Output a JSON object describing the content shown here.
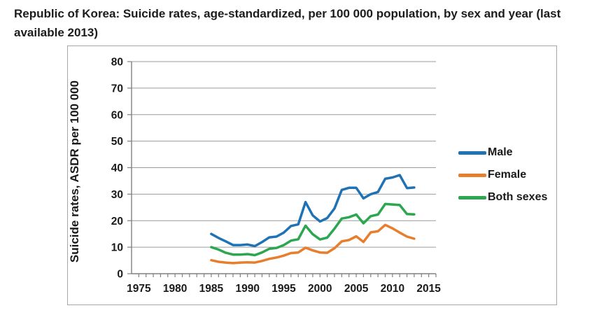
{
  "page": {
    "title": "Republic of Korea: Suicide rates, age-standardized, per 100 000 population, by sex and year (last available 2013)"
  },
  "chart_data": {
    "type": "line",
    "title": "Republic of Korea: Suicide rates, age-standardized, per 100 000 population, by sex and year (last available 2013)",
    "xlabel": "",
    "ylabel": "Suicide rates, ASDR per 100 000",
    "x": [
      1985,
      1986,
      1987,
      1988,
      1989,
      1990,
      1991,
      1992,
      1993,
      1994,
      1995,
      1996,
      1997,
      1998,
      1999,
      2000,
      2001,
      2002,
      2003,
      2004,
      2005,
      2006,
      2007,
      2008,
      2009,
      2010,
      2011,
      2012,
      2013
    ],
    "series": [
      {
        "name": "Male",
        "color": "#1F73B5",
        "values": [
          15.0,
          13.5,
          12.2,
          10.8,
          10.8,
          11.0,
          10.4,
          11.9,
          13.7,
          14.0,
          15.5,
          18.0,
          18.6,
          27.0,
          22.0,
          19.7,
          21.0,
          24.6,
          31.6,
          32.4,
          32.4,
          28.4,
          30.0,
          30.8,
          35.8,
          36.3,
          37.2,
          32.3,
          32.5
        ]
      },
      {
        "name": "Female",
        "color": "#E87E2C",
        "values": [
          5.1,
          4.5,
          4.2,
          4.0,
          4.2,
          4.3,
          4.2,
          4.8,
          5.6,
          6.1,
          6.8,
          7.8,
          8.0,
          9.8,
          8.8,
          8.0,
          7.9,
          9.6,
          12.2,
          12.7,
          14.1,
          12.0,
          15.6,
          16.0,
          18.4,
          17.1,
          15.5,
          14.0,
          13.2
        ]
      },
      {
        "name": "Both sexes",
        "color": "#2CA750",
        "values": [
          10.0,
          9.1,
          7.9,
          7.2,
          7.2,
          7.4,
          7.0,
          8.0,
          9.4,
          9.7,
          10.8,
          12.5,
          13.0,
          18.1,
          14.9,
          12.9,
          13.6,
          17.0,
          20.8,
          21.3,
          22.3,
          19.0,
          21.7,
          22.3,
          26.3,
          26.1,
          25.9,
          22.5,
          22.4
        ]
      }
    ],
    "xlim": [
      1974,
      2016
    ],
    "ylim": [
      0,
      80
    ],
    "y_ticks": [
      0,
      10,
      20,
      30,
      40,
      50,
      60,
      70,
      80
    ],
    "x_tick_labels": [
      1975,
      1980,
      1985,
      1990,
      1995,
      2000,
      2005,
      2010,
      2015
    ],
    "minor_x_ticks_every": 1,
    "grid": true,
    "legend_position": "right",
    "colors": {
      "grid": "#9b9b9b",
      "axis": "#808080",
      "tick_text": "#1a1a1a",
      "frame": "#a6a6a6"
    }
  }
}
